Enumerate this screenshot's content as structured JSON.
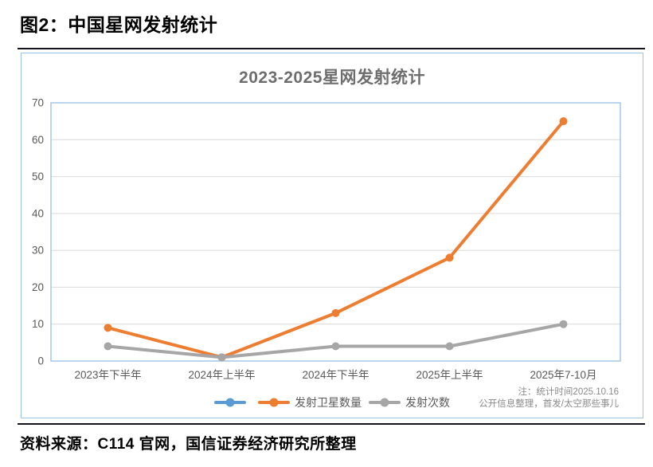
{
  "figure": {
    "heading": "图2：中国星网发射统计",
    "source": "资料来源：C114 官网，国信证券经济研究所整理"
  },
  "colors": {
    "panel_border": "#9DC3E6",
    "plot_border": "#9DC3E6",
    "gridline": "#D9D9D9",
    "rule": "#14141E",
    "title_text": "#6E6E6E",
    "axis_text": "#595959",
    "note_text": "#8A8A8A"
  },
  "chart_data": {
    "type": "line",
    "title": "2023-2025星网发射统计",
    "categories": [
      "2023年下半年",
      "2024年上半年",
      "2024年下半年",
      "2025年上半年",
      "2025年7-10月"
    ],
    "series": [
      {
        "name": "",
        "color": "#5B9BD5",
        "values": []
      },
      {
        "name": "发射卫星数量",
        "color": "#ED7D31",
        "values": [
          9,
          1,
          13,
          28,
          65
        ]
      },
      {
        "name": "发射次数",
        "color": "#A6A6A6",
        "values": [
          4,
          1,
          4,
          4,
          10
        ]
      }
    ],
    "ylim": [
      0,
      70
    ],
    "ytick_step": 10,
    "grid": true,
    "legend_position": "bottom",
    "note_lines": [
      "注：统计时间2025.10.16",
      "公开信息整理，首发/太空那些事儿"
    ]
  }
}
